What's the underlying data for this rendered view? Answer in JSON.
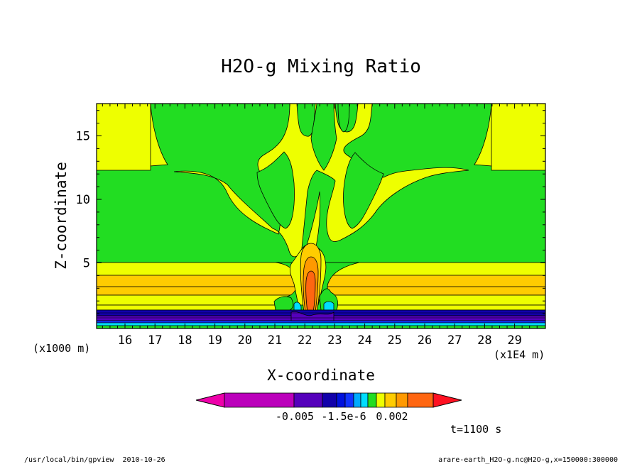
{
  "chart_data": {
    "type": "heatmap",
    "title": "H2O-g Mixing Ratio",
    "xlabel": "X-coordinate",
    "ylabel": "Z-coordinate",
    "x_ticks": [
      "16",
      "17",
      "18",
      "19",
      "20",
      "21",
      "22",
      "23",
      "24",
      "25",
      "26",
      "27",
      "28",
      "29"
    ],
    "y_ticks": [
      "5",
      "10",
      "15"
    ],
    "x_scale_note": "(x1E4 m)",
    "y_scale_note": "(x1000 m)",
    "colorbar_labels": [
      "-0.005",
      "-1.5e-6",
      "0.002"
    ],
    "time_label": "t=1100 s",
    "footer_left": "/usr/local/bin/gpview  2010-10-26",
    "footer_right": "arare-earth_H2O-g.nc@H2O-g,x=150000:300000",
    "colors": {
      "green": "#22dd22",
      "yellow": "#eeff00",
      "gold": "#ffcc00",
      "orange": "#ff9900",
      "redorange": "#ff6611",
      "cyan": "#00ddff",
      "blue": "#1133ff",
      "navy": "#1100aa",
      "purple": "#5500bb",
      "magenta": "#bb00bb"
    }
  }
}
